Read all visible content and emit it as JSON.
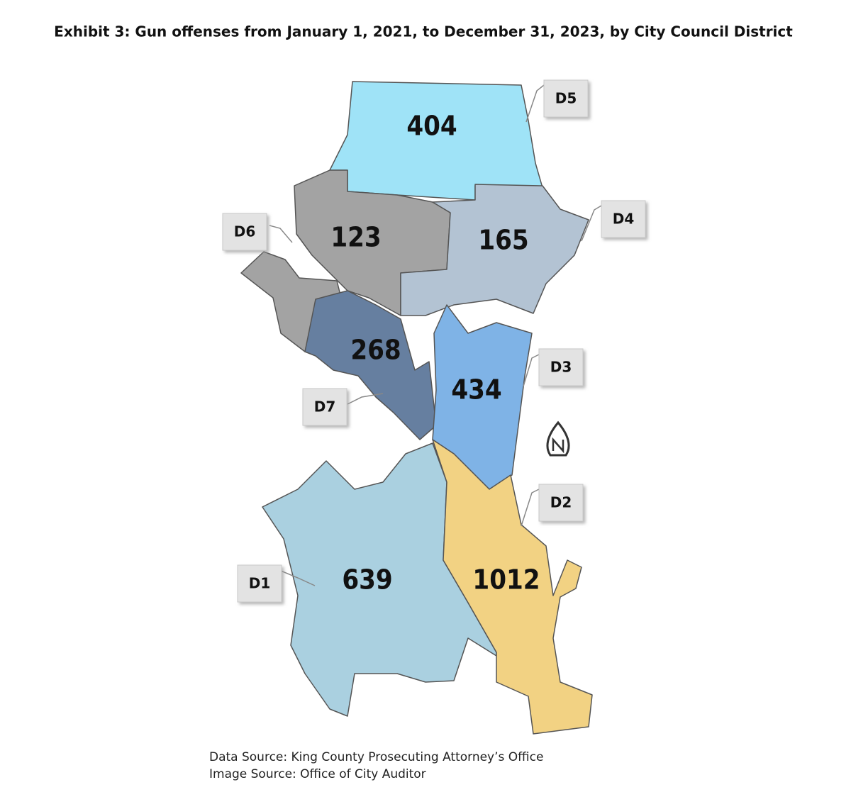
{
  "title": "Exhibit 3: Gun offenses from January 1, 2021, to December 31, 2023, by City Council District",
  "districts": [
    {
      "label": "D1",
      "value": 639
    },
    {
      "label": "D2",
      "value": 1012
    },
    {
      "label": "D3",
      "value": 434
    },
    {
      "label": "D4",
      "value": 165
    },
    {
      "label": "D5",
      "value": 404
    },
    {
      "label": "D6",
      "value": 123
    },
    {
      "label": "D7",
      "value": 268
    }
  ],
  "sources": [
    "Data Source: King County Prosecuting Attorney’s Office",
    "Image Source: Office of City Auditor"
  ]
}
